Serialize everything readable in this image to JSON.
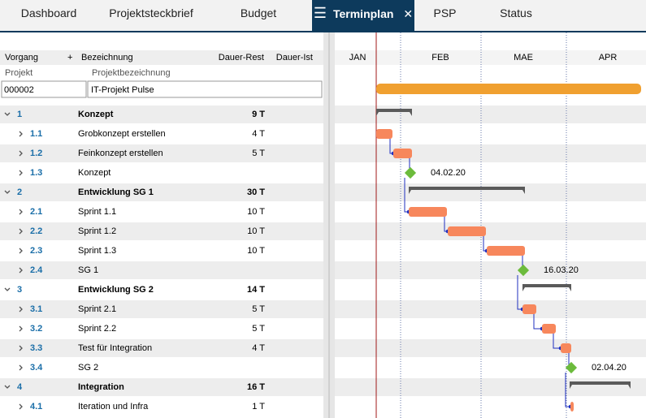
{
  "tabs": [
    "Dashboard",
    "Projektsteckbrief",
    "Budget",
    "Terminplan",
    "PSP",
    "Status"
  ],
  "table": {
    "headers": [
      "Vorgang",
      "Bezeichnung",
      "Dauer-Rest",
      "Dauer-Ist"
    ],
    "project_header": [
      "Projekt",
      "Projektbezeichnung"
    ],
    "project": [
      "000002",
      "IT-Projekt Pulse"
    ],
    "rows": [
      {
        "id": "1",
        "name": "Konzept",
        "rest": "9 T"
      },
      {
        "id": "1.1",
        "name": "Grobkonzept erstellen",
        "rest": "4 T"
      },
      {
        "id": "1.2",
        "name": "Feinkonzept erstellen",
        "rest": "5 T"
      },
      {
        "id": "1.3",
        "name": "Konzept",
        "date": "04.02.20"
      },
      {
        "id": "2",
        "name": "Entwicklung SG 1",
        "rest": "30 T"
      },
      {
        "id": "2.1",
        "name": "Sprint 1.1",
        "rest": "10 T"
      },
      {
        "id": "2.2",
        "name": "Sprint 1.2",
        "rest": "10 T"
      },
      {
        "id": "2.3",
        "name": "Sprint 1.3",
        "rest": "10 T"
      },
      {
        "id": "2.4",
        "name": "SG 1",
        "date": "16.03.20"
      },
      {
        "id": "3",
        "name": "Entwicklung SG 2",
        "rest": "14 T"
      },
      {
        "id": "3.1",
        "name": "Sprint 2.1",
        "rest": "5 T"
      },
      {
        "id": "3.2",
        "name": "Sprint 2.2",
        "rest": "5 T"
      },
      {
        "id": "3.3",
        "name": "Test für  Integration",
        "rest": "4 T"
      },
      {
        "id": "3.4",
        "name": "SG 2",
        "date": "02.04.20"
      },
      {
        "id": "4",
        "name": "Integration",
        "rest": "16 T"
      },
      {
        "id": "4.1",
        "name": "Iteration und Infra",
        "rest": "1 T"
      }
    ]
  },
  "gantt": {
    "months": [
      "JAN",
      "FEB",
      "MAE",
      "APR"
    ]
  }
}
